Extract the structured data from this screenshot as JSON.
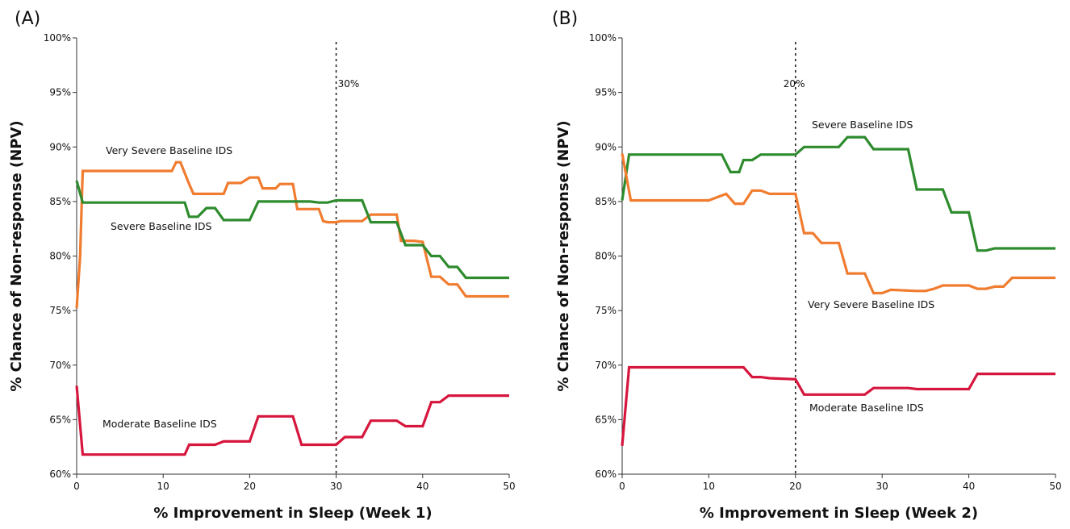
{
  "chart_data": [
    {
      "panel": "(A)",
      "type": "line",
      "xlabel": "% Improvement in Sleep (Week 1)",
      "ylabel": "% Chance of Non-response (NPV)",
      "xlim": [
        0,
        50
      ],
      "ylim": [
        60,
        100
      ],
      "xticks": [
        "0",
        "10",
        "20",
        "30",
        "40",
        "50"
      ],
      "yticks": [
        "60%",
        "65%",
        "70%",
        "75%",
        "80%",
        "85%",
        "90%",
        "95%",
        "100%"
      ],
      "grid": false,
      "reference_line": {
        "x": 30,
        "label": "30%"
      },
      "series": [
        {
          "name": "Very Severe Baseline IDS",
          "color": "#f07c30",
          "x": [
            0,
            0.4,
            0.7,
            11,
            11.5,
            12,
            13,
            13.5,
            17,
            17.5,
            19,
            20,
            21,
            21.5,
            23,
            23.5,
            25,
            25.5,
            28,
            28.5,
            29,
            30,
            30.5,
            33,
            34,
            37,
            37.5,
            39,
            40,
            41,
            42,
            43,
            44,
            45,
            46,
            50
          ],
          "y": [
            75.2,
            80,
            87.8,
            87.8,
            88.6,
            88.6,
            86.6,
            85.7,
            85.7,
            86.7,
            86.7,
            87.2,
            87.2,
            86.2,
            86.2,
            86.6,
            86.6,
            84.3,
            84.3,
            83.2,
            83.1,
            83.1,
            83.2,
            83.2,
            83.8,
            83.8,
            81.4,
            81.4,
            81.3,
            78.1,
            78.1,
            77.4,
            77.4,
            76.3,
            76.3,
            76.3
          ],
          "label_text": "Very Severe Baseline IDS"
        },
        {
          "name": "Severe Baseline IDS",
          "color": "#2e8b2e",
          "x": [
            0,
            0.7,
            12.5,
            13,
            14,
            15,
            16,
            17,
            20,
            21,
            27,
            28,
            29,
            30,
            33,
            34,
            35,
            37,
            38,
            39,
            40,
            41,
            42,
            43,
            44,
            45,
            46,
            50
          ],
          "y": [
            86.9,
            84.9,
            84.9,
            83.6,
            83.6,
            84.4,
            84.4,
            83.3,
            83.3,
            85,
            85,
            84.9,
            84.9,
            85.1,
            85.1,
            83.1,
            83.1,
            83.1,
            81,
            81,
            81,
            80,
            80,
            79,
            79,
            78,
            78,
            78
          ],
          "label_text": "Severe Baseline IDS"
        },
        {
          "name": "Moderate Baseline IDS",
          "color": "#d6163d",
          "x": [
            0,
            0.7,
            12.5,
            13,
            16,
            17,
            20,
            21,
            25,
            26,
            30,
            31,
            33,
            34,
            37,
            38,
            40,
            41,
            42,
            43,
            50
          ],
          "y": [
            68.1,
            61.8,
            61.8,
            62.7,
            62.7,
            63,
            63,
            65.3,
            65.3,
            62.7,
            62.7,
            63.4,
            63.4,
            64.9,
            64.9,
            64.4,
            64.4,
            66.6,
            66.6,
            67.2,
            67.2
          ],
          "label_text": "Moderate Baseline IDS"
        }
      ]
    },
    {
      "panel": "(B)",
      "type": "line",
      "xlabel": "% Improvement in Sleep (Week 2)",
      "ylabel": "% Chance of Non-response (NPV)",
      "xlim": [
        0,
        50
      ],
      "ylim": [
        60,
        100
      ],
      "xticks": [
        "0",
        "10",
        "20",
        "30",
        "40",
        "50"
      ],
      "yticks": [
        "60%",
        "65%",
        "70%",
        "75%",
        "80%",
        "85%",
        "90%",
        "95%",
        "100%"
      ],
      "grid": false,
      "reference_line": {
        "x": 20,
        "label": "20%"
      },
      "series": [
        {
          "name": "Severe Baseline IDS",
          "color": "#2e8b2e",
          "x": [
            0,
            0.8,
            11.5,
            12.5,
            13.5,
            14,
            15,
            16,
            17,
            20,
            21,
            25,
            26,
            28,
            29,
            33,
            34,
            37,
            38,
            40,
            41,
            42,
            43,
            50
          ],
          "y": [
            85.1,
            89.3,
            89.3,
            87.7,
            87.7,
            88.8,
            88.8,
            89.3,
            89.3,
            89.3,
            90,
            90,
            90.9,
            90.9,
            89.8,
            89.8,
            86.1,
            86.1,
            84,
            84,
            80.5,
            80.5,
            80.7,
            80.7
          ],
          "label_text": "Severe Baseline IDS"
        },
        {
          "name": "Very Severe Baseline IDS",
          "color": "#f07c30",
          "x": [
            0,
            1,
            10,
            12,
            13,
            14,
            15,
            16,
            17,
            20,
            21,
            22,
            23,
            25,
            26,
            28,
            29,
            30,
            31,
            34,
            35,
            36,
            37,
            40,
            41,
            42,
            43,
            44,
            45,
            46,
            50
          ],
          "y": [
            89.4,
            85.1,
            85.1,
            85.7,
            84.8,
            84.8,
            86,
            86,
            85.7,
            85.7,
            82.1,
            82.1,
            81.2,
            81.2,
            78.4,
            78.4,
            76.6,
            76.6,
            76.9,
            76.8,
            76.8,
            77,
            77.3,
            77.3,
            77,
            77,
            77.2,
            77.2,
            78,
            78,
            78
          ],
          "label_text": "Very Severe Baseline IDS"
        },
        {
          "name": "Moderate Baseline IDS",
          "color": "#d6163d",
          "x": [
            0,
            0.8,
            14,
            15,
            16,
            17,
            20,
            21,
            28,
            29,
            33,
            34,
            39,
            40,
            41,
            50
          ],
          "y": [
            62.6,
            69.8,
            69.8,
            68.9,
            68.9,
            68.8,
            68.7,
            67.3,
            67.3,
            67.9,
            67.9,
            67.8,
            67.8,
            67.8,
            69.2,
            69.2
          ],
          "label_text": "Moderate Baseline IDS"
        }
      ]
    }
  ]
}
